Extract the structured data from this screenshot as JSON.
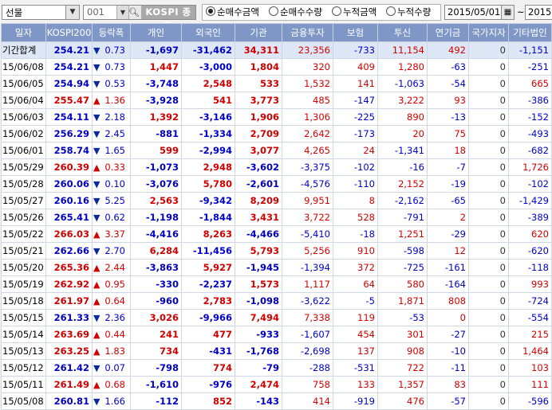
{
  "toolbar": {
    "market_select": "선물",
    "code": "001",
    "index_name": "KOSPI 종합",
    "radios": [
      {
        "label": "순매수금액",
        "selected": true
      },
      {
        "label": "순매수수량",
        "selected": false
      },
      {
        "label": "누적금액",
        "selected": false
      },
      {
        "label": "누적수량",
        "selected": false
      }
    ],
    "start_date": "2015/05/01",
    "tilde": "~",
    "end_date": "2015"
  },
  "table": {
    "headers": [
      "일자",
      "KOSPI200",
      "등락폭",
      "개인",
      "외국인",
      "기관",
      "금융투자",
      "보험",
      "투신",
      "연기금",
      "국가지자",
      "기타법인"
    ],
    "rows": [
      {
        "date": "기간합계",
        "kospi": "254.21",
        "dir": "dn",
        "chg": "0.73",
        "indiv": "-1,697",
        "foreign": "-31,462",
        "inst": "34,311",
        "fin": "23,356",
        "ins": "-733",
        "trust": "11,154",
        "pension": "492",
        "gov": "0",
        "etc": "-1,151"
      },
      {
        "date": "15/06/08",
        "kospi": "254.21",
        "dir": "dn",
        "chg": "0.73",
        "indiv": "1,447",
        "foreign": "-3,000",
        "inst": "1,804",
        "fin": "320",
        "ins": "409",
        "trust": "1,280",
        "pension": "-63",
        "gov": "0",
        "etc": "-251"
      },
      {
        "date": "15/06/05",
        "kospi": "254.94",
        "dir": "dn",
        "chg": "0.53",
        "indiv": "-3,748",
        "foreign": "2,548",
        "inst": "533",
        "fin": "1,532",
        "ins": "141",
        "trust": "-1,063",
        "pension": "-54",
        "gov": "0",
        "etc": "665"
      },
      {
        "date": "15/06/04",
        "kospi": "255.47",
        "dir": "up",
        "chg": "1.36",
        "indiv": "-3,928",
        "foreign": "541",
        "inst": "3,773",
        "fin": "485",
        "ins": "-147",
        "trust": "3,222",
        "pension": "93",
        "gov": "0",
        "etc": "-386"
      },
      {
        "date": "15/06/03",
        "kospi": "254.11",
        "dir": "dn",
        "chg": "2.18",
        "indiv": "1,392",
        "foreign": "-3,146",
        "inst": "1,906",
        "fin": "1,306",
        "ins": "-225",
        "trust": "890",
        "pension": "-13",
        "gov": "0",
        "etc": "-152"
      },
      {
        "date": "15/06/02",
        "kospi": "256.29",
        "dir": "dn",
        "chg": "2.45",
        "indiv": "-881",
        "foreign": "-1,334",
        "inst": "2,709",
        "fin": "2,642",
        "ins": "-173",
        "trust": "20",
        "pension": "75",
        "gov": "0",
        "etc": "-493"
      },
      {
        "date": "15/06/01",
        "kospi": "258.74",
        "dir": "dn",
        "chg": "1.65",
        "indiv": "599",
        "foreign": "-2,994",
        "inst": "3,077",
        "fin": "4,265",
        "ins": "24",
        "trust": "-1,341",
        "pension": "18",
        "gov": "0",
        "etc": "-682"
      },
      {
        "date": "15/05/29",
        "kospi": "260.39",
        "dir": "up",
        "chg": "0.33",
        "indiv": "-1,073",
        "foreign": "2,948",
        "inst": "-3,602",
        "fin": "-3,375",
        "ins": "-102",
        "trust": "-16",
        "pension": "-7",
        "gov": "0",
        "etc": "1,726"
      },
      {
        "date": "15/05/28",
        "kospi": "260.06",
        "dir": "dn",
        "chg": "0.10",
        "indiv": "-3,076",
        "foreign": "5,780",
        "inst": "-2,601",
        "fin": "-4,576",
        "ins": "-110",
        "trust": "2,152",
        "pension": "-19",
        "gov": "0",
        "etc": "-102"
      },
      {
        "date": "15/05/27",
        "kospi": "260.16",
        "dir": "dn",
        "chg": "5.25",
        "indiv": "2,563",
        "foreign": "-9,342",
        "inst": "8,209",
        "fin": "9,951",
        "ins": "8",
        "trust": "-2,162",
        "pension": "-65",
        "gov": "0",
        "etc": "-1,429"
      },
      {
        "date": "15/05/26",
        "kospi": "265.41",
        "dir": "dn",
        "chg": "0.62",
        "indiv": "-1,198",
        "foreign": "-1,844",
        "inst": "3,431",
        "fin": "3,722",
        "ins": "528",
        "trust": "-791",
        "pension": "2",
        "gov": "0",
        "etc": "-389"
      },
      {
        "date": "15/05/22",
        "kospi": "266.03",
        "dir": "up",
        "chg": "3.37",
        "indiv": "-4,416",
        "foreign": "8,263",
        "inst": "-4,466",
        "fin": "-5,410",
        "ins": "-18",
        "trust": "1,251",
        "pension": "-29",
        "gov": "0",
        "etc": "620"
      },
      {
        "date": "15/05/21",
        "kospi": "262.66",
        "dir": "dn",
        "chg": "2.70",
        "indiv": "6,284",
        "foreign": "-11,456",
        "inst": "5,793",
        "fin": "5,256",
        "ins": "910",
        "trust": "-598",
        "pension": "12",
        "gov": "0",
        "etc": "-620"
      },
      {
        "date": "15/05/20",
        "kospi": "265.36",
        "dir": "up",
        "chg": "2.44",
        "indiv": "-3,863",
        "foreign": "5,927",
        "inst": "-1,945",
        "fin": "-1,394",
        "ins": "372",
        "trust": "-725",
        "pension": "-161",
        "gov": "0",
        "etc": "-118"
      },
      {
        "date": "15/05/19",
        "kospi": "262.92",
        "dir": "up",
        "chg": "0.95",
        "indiv": "-330",
        "foreign": "-2,237",
        "inst": "1,573",
        "fin": "1,117",
        "ins": "64",
        "trust": "580",
        "pension": "-164",
        "gov": "0",
        "etc": "993"
      },
      {
        "date": "15/05/18",
        "kospi": "261.97",
        "dir": "up",
        "chg": "0.64",
        "indiv": "-960",
        "foreign": "2,783",
        "inst": "-1,098",
        "fin": "-3,622",
        "ins": "-5",
        "trust": "1,871",
        "pension": "808",
        "gov": "0",
        "etc": "-724"
      },
      {
        "date": "15/05/15",
        "kospi": "261.33",
        "dir": "dn",
        "chg": "2.36",
        "indiv": "3,026",
        "foreign": "-9,966",
        "inst": "7,494",
        "fin": "7,338",
        "ins": "119",
        "trust": "-53",
        "pension": "0",
        "gov": "0",
        "etc": "-554"
      },
      {
        "date": "15/05/14",
        "kospi": "263.69",
        "dir": "up",
        "chg": "0.44",
        "indiv": "241",
        "foreign": "477",
        "inst": "-933",
        "fin": "-1,607",
        "ins": "454",
        "trust": "301",
        "pension": "-27",
        "gov": "0",
        "etc": "215"
      },
      {
        "date": "15/05/13",
        "kospi": "263.25",
        "dir": "up",
        "chg": "1.83",
        "indiv": "734",
        "foreign": "-431",
        "inst": "-1,768",
        "fin": "-2,698",
        "ins": "137",
        "trust": "908",
        "pension": "-10",
        "gov": "0",
        "etc": "1,464"
      },
      {
        "date": "15/05/12",
        "kospi": "261.42",
        "dir": "dn",
        "chg": "0.07",
        "indiv": "-798",
        "foreign": "774",
        "inst": "-79",
        "fin": "-288",
        "ins": "-531",
        "trust": "722",
        "pension": "-11",
        "gov": "0",
        "etc": "103"
      },
      {
        "date": "15/05/11",
        "kospi": "261.49",
        "dir": "up",
        "chg": "0.68",
        "indiv": "-1,610",
        "foreign": "-976",
        "inst": "2,474",
        "fin": "758",
        "ins": "133",
        "trust": "1,357",
        "pension": "83",
        "gov": "0",
        "etc": "111"
      },
      {
        "date": "15/05/08",
        "kospi": "260.81",
        "dir": "dn",
        "chg": "1.66",
        "indiv": "-112",
        "foreign": "852",
        "inst": "-143",
        "fin": "414",
        "ins": "-919",
        "trust": "476",
        "pension": "-57",
        "gov": "0",
        "etc": "-596"
      }
    ]
  }
}
